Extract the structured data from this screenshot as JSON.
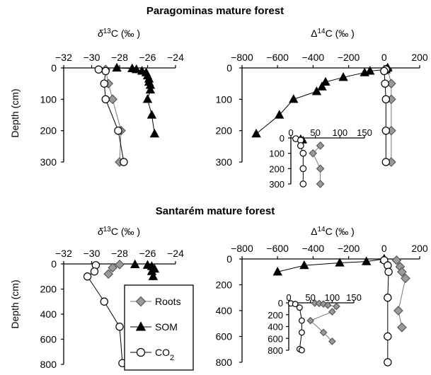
{
  "figure": {
    "title_top": "Paragominas mature forest",
    "title_bottom": "Santarém mature forest",
    "ylabel": "Depth (cm)",
    "d13c_label": "δ13C (‰ )",
    "d14c_label": "Δ14C (‰ )",
    "legend": [
      {
        "name": "Roots",
        "marker": "diamond",
        "color": "#9a9a9a"
      },
      {
        "name": "SOM",
        "marker": "triangle",
        "color": "#000000"
      },
      {
        "name": "CO2",
        "marker": "circle",
        "color": "#ffffff"
      }
    ]
  },
  "chart_data": [
    {
      "type": "scatter",
      "site": "Paragominas mature forest",
      "xlabel": "δ13C (‰ )",
      "ylabel": "Depth (cm)",
      "xlim": [
        -32,
        -24
      ],
      "ylim": [
        0,
        300
      ],
      "xticks": [
        -32,
        -30,
        -28,
        -26,
        -24
      ],
      "yticks": [
        0,
        100,
        200,
        300
      ],
      "series": [
        {
          "name": "Roots",
          "marker": "diamond",
          "x": [
            -29.0,
            -28.8,
            -28.5,
            -27.9,
            -28.0
          ],
          "y": [
            5,
            50,
            100,
            200,
            300
          ]
        },
        {
          "name": "SOM",
          "marker": "triangle",
          "x": [
            -28.2,
            -27.1,
            -26.8,
            -26.4,
            -26.1,
            -26.0,
            -25.9,
            -25.9,
            -25.8,
            -25.8,
            -26.0,
            -25.7,
            -25.5
          ],
          "y": [
            0,
            2,
            5,
            10,
            15,
            25,
            35,
            45,
            55,
            70,
            100,
            150,
            210
          ]
        },
        {
          "name": "CO2",
          "marker": "circle",
          "x": [
            -29.5,
            -29.0,
            -29.1,
            -29.0,
            -28.1,
            -27.7
          ],
          "y": [
            5,
            10,
            50,
            100,
            200,
            300
          ]
        }
      ]
    },
    {
      "type": "scatter",
      "site": "Paragominas mature forest",
      "xlabel": "Δ14C (‰ )",
      "ylabel": "Depth (cm)",
      "xlim": [
        -800,
        200
      ],
      "ylim": [
        0,
        300
      ],
      "xticks": [
        -800,
        -600,
        -400,
        -200,
        0,
        200
      ],
      "yticks": [
        0,
        100,
        200,
        300
      ],
      "series": [
        {
          "name": "Roots",
          "marker": "diamond",
          "x": [
            20,
            40,
            40,
            40,
            40
          ],
          "y": [
            5,
            50,
            100,
            200,
            300
          ]
        },
        {
          "name": "SOM",
          "marker": "triangle",
          "x": [
            20,
            10,
            -80,
            -110,
            -230,
            -330,
            -350,
            -380,
            -510,
            -590,
            -720
          ],
          "y": [
            0,
            5,
            10,
            15,
            30,
            45,
            60,
            75,
            100,
            150,
            210
          ]
        },
        {
          "name": "CO2",
          "marker": "circle",
          "x": [
            10,
            0,
            5,
            10,
            10,
            10
          ],
          "y": [
            5,
            10,
            50,
            100,
            200,
            300
          ]
        }
      ]
    },
    {
      "type": "scatter",
      "site": "Paragominas mature forest",
      "inset": true,
      "xlim": [
        0,
        150
      ],
      "ylim": [
        0,
        300
      ],
      "xticks": [
        0,
        50,
        100,
        150
      ],
      "yticks": [
        0,
        100,
        200,
        300
      ],
      "series": [
        {
          "name": "Roots",
          "marker": "diamond",
          "x": [
            60,
            45,
            60,
            60
          ],
          "y": [
            50,
            100,
            200,
            300
          ]
        },
        {
          "name": "SOM",
          "marker": "triangle",
          "x": [
            20,
            25
          ],
          "y": [
            5,
            15
          ]
        },
        {
          "name": "CO2",
          "marker": "circle",
          "x": [
            10,
            20,
            20,
            25,
            25,
            25
          ],
          "y": [
            5,
            15,
            50,
            100,
            200,
            300
          ]
        }
      ]
    },
    {
      "type": "scatter",
      "site": "Santarém mature forest",
      "xlabel": "δ13C (‰ )",
      "ylabel": "Depth (cm)",
      "xlim": [
        -32,
        -24
      ],
      "ylim": [
        0,
        800
      ],
      "xticks": [
        -32,
        -30,
        -28,
        -26,
        -24
      ],
      "yticks": [
        0,
        200,
        400,
        600,
        800
      ],
      "series": [
        {
          "name": "Roots",
          "marker": "diamond",
          "x": [
            -28.0,
            -28.5,
            -28.8
          ],
          "y": [
            5,
            30,
            80
          ]
        },
        {
          "name": "SOM",
          "marker": "triangle",
          "x": [
            -26.9,
            -26.0,
            -25.7,
            -25.5,
            -25.7,
            -25.6
          ],
          "y": [
            5,
            10,
            20,
            40,
            60,
            100
          ]
        },
        {
          "name": "CO2",
          "marker": "circle",
          "x": [
            -29.7,
            -29.8,
            -30.3,
            -29.1,
            -28.0,
            -27.8
          ],
          "y": [
            10,
            60,
            100,
            300,
            500,
            790
          ]
        }
      ]
    },
    {
      "type": "scatter",
      "site": "Santarém mature forest",
      "xlabel": "Δ14C (‰ )",
      "ylabel": "Depth (cm)",
      "xlim": [
        -800,
        200
      ],
      "ylim": [
        0,
        800
      ],
      "xticks": [
        -800,
        -600,
        -400,
        -200,
        0,
        200
      ],
      "yticks": [
        0,
        200,
        400,
        600,
        800
      ],
      "series": [
        {
          "name": "Roots",
          "marker": "diamond",
          "x": [
            70,
            90,
            100,
            120,
            80,
            100
          ],
          "y": [
            10,
            60,
            100,
            150,
            400,
            530
          ]
        },
        {
          "name": "SOM",
          "marker": "triangle",
          "x": [
            0,
            -100,
            -250,
            -450,
            -600
          ],
          "y": [
            0,
            20,
            30,
            50,
            100
          ]
        },
        {
          "name": "CO2",
          "marker": "circle",
          "x": [
            0,
            20,
            25,
            20,
            20,
            20
          ],
          "y": [
            10,
            50,
            100,
            300,
            600,
            800
          ]
        }
      ]
    },
    {
      "type": "scatter",
      "site": "Santarém mature forest",
      "inset": true,
      "xlim": [
        0,
        150
      ],
      "ylim": [
        0,
        800
      ],
      "xticks": [
        0,
        50,
        100,
        150
      ],
      "yticks": [
        0,
        200,
        400,
        600,
        800
      ],
      "series": [
        {
          "name": "Roots",
          "marker": "diamond",
          "x": [
            60,
            70,
            80,
            90,
            110,
            100,
            50,
            80,
            100
          ],
          "y": [
            5,
            10,
            20,
            40,
            60,
            150,
            300,
            500,
            650
          ]
        },
        {
          "name": "SOM",
          "marker": "triangle",
          "x": [],
          "y": []
        },
        {
          "name": "CO2",
          "marker": "circle",
          "x": [
            5,
            15,
            25,
            30,
            30,
            25,
            30
          ],
          "y": [
            10,
            20,
            80,
            300,
            500,
            780,
            800
          ]
        }
      ]
    }
  ]
}
